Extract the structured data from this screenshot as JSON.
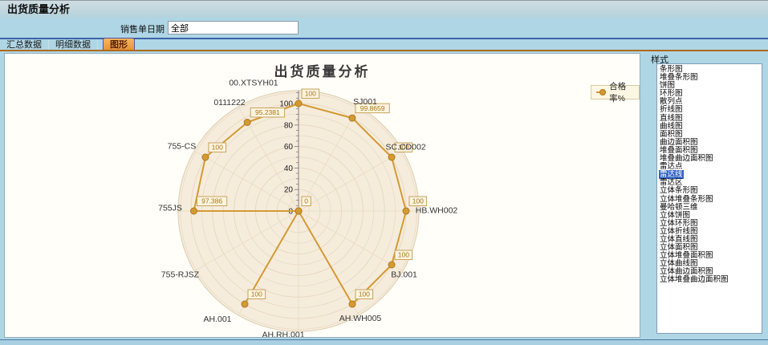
{
  "window": {
    "title": "出货质量分析"
  },
  "filter": {
    "label": "销售单日期",
    "value": "全部"
  },
  "tabs": [
    {
      "label": "汇总数据",
      "active": false
    },
    {
      "label": "明细数据",
      "active": false
    },
    {
      "label": "图形",
      "active": true
    }
  ],
  "style_panel": {
    "label": "样式",
    "selected": "雷达线",
    "items": [
      "条形图",
      "堆叠条形图",
      "饼图",
      "环形图",
      "散列点",
      "折线图",
      "直线图",
      "曲线图",
      "面积图",
      "曲边面积图",
      "堆叠面积图",
      "堆叠曲边面积图",
      "雷达点",
      "雷达线",
      "雷达区",
      "立体条形图",
      "立体堆叠条形图",
      "曼哈顿三维",
      "立体饼图",
      "立体环形图",
      "立体折线图",
      "立体直线图",
      "立体面积图",
      "立体堆叠面积图",
      "立体曲线图",
      "立体曲边面积图",
      "立体堆叠曲边面积图"
    ]
  },
  "chart_data": {
    "type": "radar-line",
    "title": "出货质量分析",
    "categories": [
      "00.XTSYH01",
      "SJ001",
      "SC.CD002",
      "HB.WH002",
      "BJ.001",
      "AH.WH005",
      "AH.RH.001",
      "AH.001",
      "755-RJSZ",
      "755JS",
      "755-CS",
      "0111222"
    ],
    "series": [
      {
        "name": "合格率%",
        "values": [
          100,
          99.8659,
          100,
          100,
          100,
          100,
          0,
          100,
          0,
          97.386,
          100,
          95.2381
        ]
      }
    ],
    "axis": {
      "min": 0,
      "max": 100,
      "tick_interval": 20,
      "tick_labels": [
        "0",
        "20",
        "40",
        "60",
        "80",
        "100"
      ]
    },
    "legend_position": "right",
    "grid": "polar-circles",
    "colors": {
      "series": "#D39A33",
      "point_stroke": "#B0791C",
      "ring": "#E7D9C1",
      "fill": "#F6ECDC",
      "outer_stroke": "#DCCCB0",
      "axis": "#808080",
      "value_box_bg": "#FBF4DF",
      "value_box_border": "#C7A35E",
      "value_text": "#A8761B",
      "category_text": "#333333"
    }
  }
}
